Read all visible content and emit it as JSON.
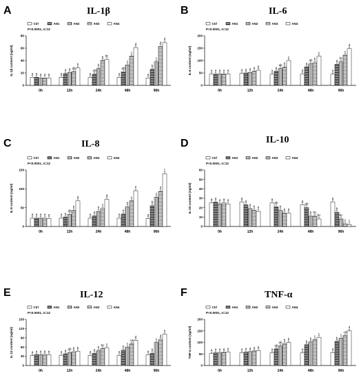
{
  "figure": {
    "groups": [
      "Ctrl",
      "AN1",
      "AN2",
      "AN3",
      "AN4"
    ],
    "fills": [
      "solid-white",
      "dense-horizontal-lines",
      "vertical-lines",
      "horizontal-lines",
      "solid-white"
    ]
  },
  "chart_data": [
    {
      "panel": "A",
      "title": "IL-1β",
      "type": "bar",
      "ylabel": "IL-1β content (ng/ml)",
      "note": "P<0.0001, n=12",
      "categories": [
        "0h",
        "12h",
        "24h",
        "48h",
        "96h"
      ],
      "ylim": [
        0,
        80
      ],
      "yticks": [
        "0",
        "20",
        "40",
        "60",
        "80"
      ],
      "series": [
        {
          "name": "Ctrl",
          "values": [
            13,
            13,
            13,
            13,
            12
          ]
        },
        {
          "name": "AN1",
          "values": [
            13,
            19,
            18,
            22,
            26
          ]
        },
        {
          "name": "AN2",
          "values": [
            12,
            21,
            27,
            33,
            38
          ]
        },
        {
          "name": "AN3",
          "values": [
            12,
            22,
            40,
            47,
            63
          ]
        },
        {
          "name": "AN4",
          "values": [
            12,
            28,
            42,
            61,
            69
          ]
        }
      ],
      "labels": [
        [
          "a",
          "a",
          "a",
          "a",
          "a"
        ],
        [
          "a",
          "a",
          "ab",
          "ab",
          "b"
        ],
        [
          "a",
          "a",
          "b",
          "c",
          "c"
        ],
        [
          "a",
          "ab",
          "b",
          "c",
          "d"
        ],
        [
          "a",
          "b",
          "bc",
          "d",
          "d"
        ]
      ]
    },
    {
      "panel": "B",
      "title": "IL-6",
      "type": "bar",
      "ylabel": "IL-6 content (ng/ml)",
      "note": "P<0.0001, n=12",
      "categories": [
        "0h",
        "12h",
        "24h",
        "48h",
        "96h"
      ],
      "ylim": [
        0,
        200
      ],
      "yticks": [
        "0",
        "50",
        "100",
        "150",
        "200"
      ],
      "series": [
        {
          "name": "Ctrl",
          "values": [
            45,
            48,
            45,
            46,
            45
          ]
        },
        {
          "name": "AN1",
          "values": [
            45,
            50,
            57,
            75,
            85
          ]
        },
        {
          "name": "AN2",
          "values": [
            46,
            52,
            68,
            87,
            95
          ]
        },
        {
          "name": "AN3",
          "values": [
            45,
            56,
            73,
            92,
            122
          ]
        },
        {
          "name": "AN4",
          "values": [
            46,
            61,
            100,
            118,
            148
          ]
        }
      ],
      "labels": [
        [
          "a",
          "a",
          "a",
          "a",
          "a"
        ],
        [
          "a",
          "a",
          "a",
          "a",
          "a"
        ],
        [
          "a",
          "a",
          "ab",
          "ab",
          "bc"
        ],
        [
          "a",
          "a",
          "b",
          "b",
          "c"
        ],
        [
          "a",
          "b",
          "c",
          "c",
          "d"
        ]
      ]
    },
    {
      "panel": "C",
      "title": "IL-8",
      "type": "bar",
      "ylabel": "IL-8 content (ng/ml)",
      "note": "P<0.0001, n=12",
      "categories": [
        "0h",
        "12h",
        "24h",
        "48h",
        "96h"
      ],
      "ylim": [
        0,
        150
      ],
      "yticks": [
        "0",
        "50",
        "100",
        "150"
      ],
      "series": [
        {
          "name": "Ctrl",
          "values": [
            22,
            22,
            22,
            22,
            21
          ]
        },
        {
          "name": "AN1",
          "values": [
            22,
            25,
            28,
            33,
            55
          ]
        },
        {
          "name": "AN2",
          "values": [
            22,
            32,
            40,
            52,
            78
          ]
        },
        {
          "name": "AN3",
          "values": [
            22,
            42,
            48,
            68,
            93
          ]
        },
        {
          "name": "AN4",
          "values": [
            21,
            68,
            72,
            95,
            140
          ]
        }
      ],
      "labels": [
        [
          "a",
          "a",
          "a",
          "a",
          "a"
        ],
        [
          "a",
          "a",
          "a",
          "a",
          "b"
        ],
        [
          "a",
          "ab",
          "b",
          "b",
          "c"
        ],
        [
          "a",
          "b",
          "c",
          "c",
          "d"
        ],
        [
          "a",
          "d",
          "d",
          "e",
          "f"
        ]
      ]
    },
    {
      "panel": "D",
      "title": "IL-10",
      "type": "bar",
      "ylabel": "IL-10 content (ng/ml)",
      "note": "P<0.0001, n=12",
      "categories": [
        "0h",
        "12h",
        "24h",
        "48h",
        "96h"
      ],
      "ylim": [
        0,
        60
      ],
      "yticks": [
        "0",
        "10",
        "20",
        "30",
        "40",
        "50",
        "60"
      ],
      "series": [
        {
          "name": "Ctrl",
          "values": [
            25,
            26,
            25,
            23,
            26
          ]
        },
        {
          "name": "AN1",
          "values": [
            26,
            23,
            21,
            20,
            15
          ]
        },
        {
          "name": "AN2",
          "values": [
            24,
            19,
            17,
            11,
            8
          ]
        },
        {
          "name": "AN3",
          "values": [
            25,
            17,
            14,
            11,
            3
          ]
        },
        {
          "name": "AN4",
          "values": [
            24,
            16,
            14,
            8,
            2
          ]
        }
      ],
      "labels": [
        [
          "a",
          "a",
          "a",
          "a",
          "a"
        ],
        [
          "a",
          "a",
          "ab",
          "ab",
          "b"
        ],
        [
          "a",
          "a",
          "b",
          "b",
          "bc"
        ],
        [
          "a",
          "b",
          "b",
          "bc",
          "c"
        ],
        [
          "a",
          "b",
          "b",
          "bc",
          "c"
        ]
      ]
    },
    {
      "panel": "E",
      "title": "IL-12",
      "type": "bar",
      "ylabel": "IL-12 content (ng/ml)",
      "note": "P<0.0001, n=12",
      "categories": [
        "0h",
        "12h",
        "24h",
        "48h",
        "96h"
      ],
      "ylim": [
        0,
        150
      ],
      "yticks": [
        "0",
        "30",
        "60",
        "90",
        "120",
        "150"
      ],
      "series": [
        {
          "name": "Ctrl",
          "values": [
            32,
            33,
            33,
            33,
            35
          ]
        },
        {
          "name": "AN1",
          "values": [
            35,
            38,
            40,
            50,
            40
          ]
        },
        {
          "name": "AN2",
          "values": [
            35,
            42,
            48,
            60,
            75
          ]
        },
        {
          "name": "AN3",
          "values": [
            36,
            45,
            55,
            70,
            85
          ]
        },
        {
          "name": "AN4",
          "values": [
            35,
            46,
            58,
            82,
            102
          ]
        }
      ],
      "labels": [
        [
          "a",
          "a",
          "a",
          "a",
          "a"
        ],
        [
          "a",
          "a",
          "a",
          "b",
          "b"
        ],
        [
          "a",
          "ab",
          "b",
          "c",
          "c"
        ],
        [
          "a",
          "b",
          "bc",
          "cd",
          "d"
        ],
        [
          "a",
          "b",
          "c",
          "d",
          "e"
        ]
      ]
    },
    {
      "panel": "F",
      "title": "TNF-α",
      "type": "bar",
      "ylabel": "TNF-α content (ng/ml)",
      "note": "P<0.0001, n=12",
      "categories": [
        "0h",
        "12h",
        "24h",
        "48h",
        "96h"
      ],
      "ylim": [
        0,
        200
      ],
      "yticks": [
        "0",
        "50",
        "100",
        "150",
        "200"
      ],
      "series": [
        {
          "name": "Ctrl",
          "values": [
            52,
            55,
            55,
            55,
            56
          ]
        },
        {
          "name": "AN1",
          "values": [
            55,
            58,
            72,
            90,
            105
          ]
        },
        {
          "name": "AN2",
          "values": [
            55,
            60,
            85,
            102,
            118
          ]
        },
        {
          "name": "AN3",
          "values": [
            57,
            63,
            95,
            112,
            130
          ]
        },
        {
          "name": "AN4",
          "values": [
            58,
            65,
            100,
            122,
            150
          ]
        }
      ],
      "labels": [
        [
          "a",
          "a",
          "a",
          "a",
          "a"
        ],
        [
          "a",
          "a",
          "ab",
          "b",
          "b"
        ],
        [
          "a",
          "a",
          "ab",
          "b",
          "c"
        ],
        [
          "a",
          "a",
          "b",
          "c",
          "cd"
        ],
        [
          "a",
          "a",
          "b",
          "c",
          "d"
        ]
      ]
    }
  ]
}
